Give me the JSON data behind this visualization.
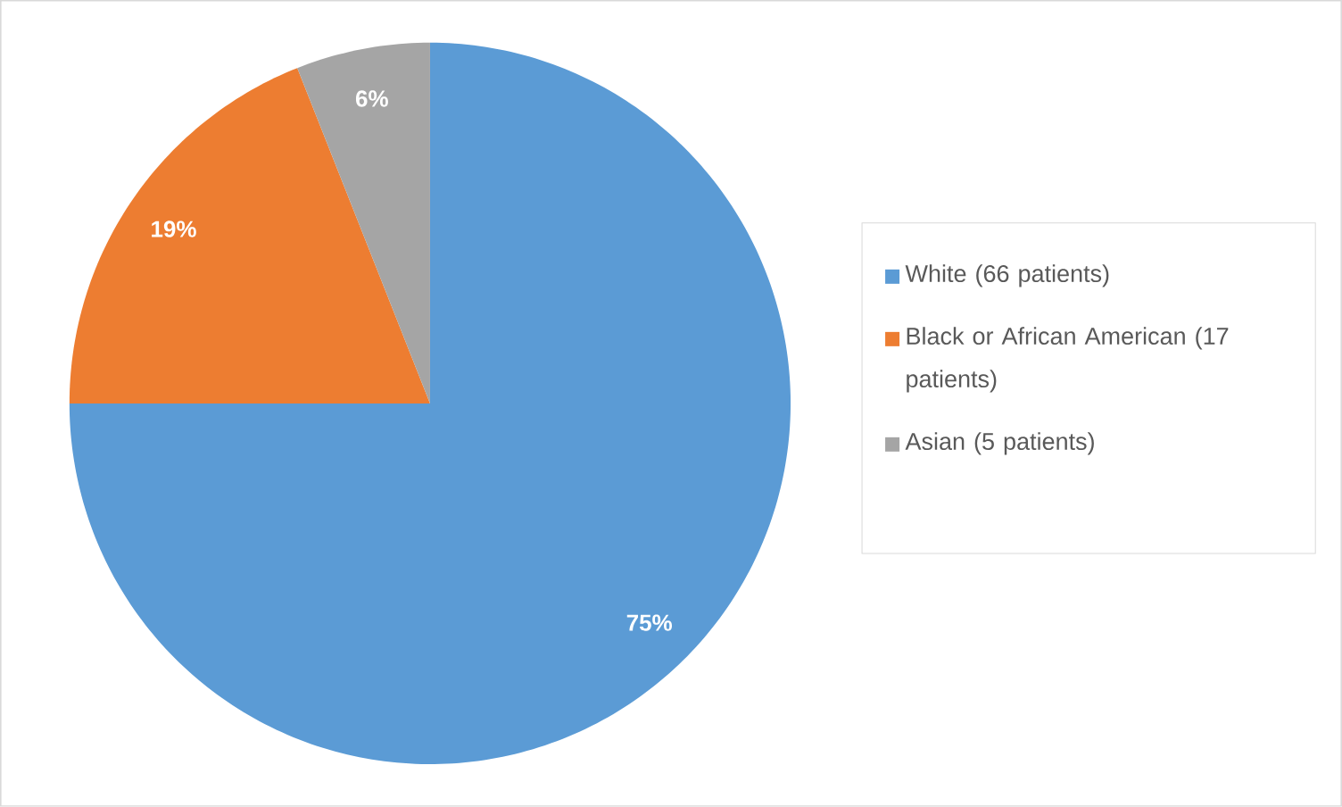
{
  "chart_data": {
    "type": "pie",
    "categories": [
      "White (66 patients)",
      "Black or African American (17 patients)",
      "Asian (5 patients)"
    ],
    "values": [
      75,
      19,
      6
    ],
    "colors": [
      "#5b9bd5",
      "#ed7d31",
      "#a5a5a5"
    ],
    "value_labels": [
      "75%",
      "19%",
      "6%"
    ],
    "legend": "right"
  }
}
